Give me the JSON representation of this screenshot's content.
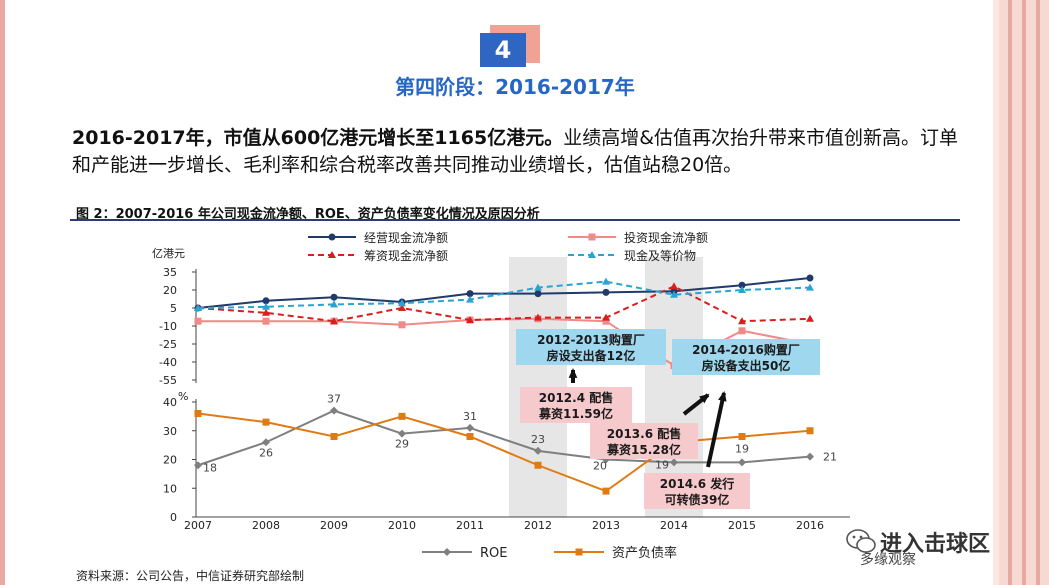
{
  "stage_badge": "4",
  "stage_title": "第四阶段：2016-2017年",
  "paragraph": {
    "bold": "2016-2017年，市值从600亿港元增长至1165亿港元。",
    "rest": "业绩高增&估值再次抬升带来市值创新高。订单和产能进一步增长、毛利率和综合税率改善共同推动业绩增长，估值站稳20倍。"
  },
  "figure_title": "图 2：2007-2016 年公司现金流净额、ROE、资产负债率变化情况及原因分析",
  "source": "资料来源：公司公告，中信证券研究部绘制",
  "watermark": {
    "title": "进入击球区",
    "subtitle": "多缘观察"
  },
  "colors": {
    "operating": "#1f3a6b",
    "investing": "#ef8a86",
    "financing": "#d91e1e",
    "cash": "#2aa3d2",
    "roe": "#7f7f7f",
    "debt": "#e07b14",
    "annotation_blue_bg": "#9fd8ee",
    "annotation_pink_bg": "#f6c9cc",
    "highlight_band": "#e6e6e6"
  },
  "chart_data": [
    {
      "type": "line",
      "ylabel": "亿港元",
      "ylim": [
        -55,
        35
      ],
      "yticks": [
        35,
        20,
        5,
        -10,
        -25,
        -40,
        -55
      ],
      "categories": [
        "2007",
        "2008",
        "2009",
        "2010",
        "2011",
        "2012",
        "2013",
        "2014",
        "2015",
        "2016"
      ],
      "legend_position": "top",
      "series": [
        {
          "name": "经营现金流净额",
          "values": [
            5,
            11,
            14,
            10,
            17,
            17,
            18,
            19,
            24,
            30
          ]
        },
        {
          "name": "投资现金流净额",
          "values": [
            -6,
            -6,
            -6,
            -9,
            -5,
            -4,
            -6,
            -43,
            -14,
            -25
          ]
        },
        {
          "name": "筹资现金流净额",
          "values": [
            5,
            1,
            -6,
            5,
            -5,
            -3,
            -3,
            23,
            -6,
            -4
          ]
        },
        {
          "name": "现金及等价物",
          "values": [
            5,
            6,
            8,
            9,
            12,
            22,
            27,
            16,
            20,
            22
          ]
        }
      ]
    },
    {
      "type": "line",
      "ylabel": "%",
      "ylim": [
        0,
        40
      ],
      "yticks": [
        40,
        30,
        20,
        10,
        0
      ],
      "categories": [
        "2007",
        "2008",
        "2009",
        "2010",
        "2011",
        "2012",
        "2013",
        "2014",
        "2015",
        "2016"
      ],
      "legend_position": "bottom",
      "series": [
        {
          "name": "ROE",
          "values": [
            18,
            26,
            37,
            29,
            31,
            23,
            20,
            19,
            19,
            21
          ],
          "labels": [
            "18",
            "26",
            "37",
            "29",
            "31",
            "23",
            "20",
            "19",
            "19",
            "21"
          ]
        },
        {
          "name": "资产负债率",
          "values": [
            36,
            33,
            28,
            35,
            28,
            18,
            9,
            26,
            28,
            30
          ]
        }
      ]
    }
  ],
  "annotations": [
    {
      "text": "2012-2013购置厂房设支出备12亿",
      "style": "blue",
      "arrow": "up"
    },
    {
      "text": "2014-2016购置厂房设备支出50亿",
      "style": "blue",
      "arrow": "none"
    },
    {
      "text": "2012.4 配售募资11.59亿",
      "style": "pink",
      "arrow": "none"
    },
    {
      "text": "2013.6 配售募资15.28亿",
      "style": "pink",
      "arrow": "up-right"
    },
    {
      "text": "2014.6 发行可转债39亿",
      "style": "pink",
      "arrow": "up"
    }
  ]
}
